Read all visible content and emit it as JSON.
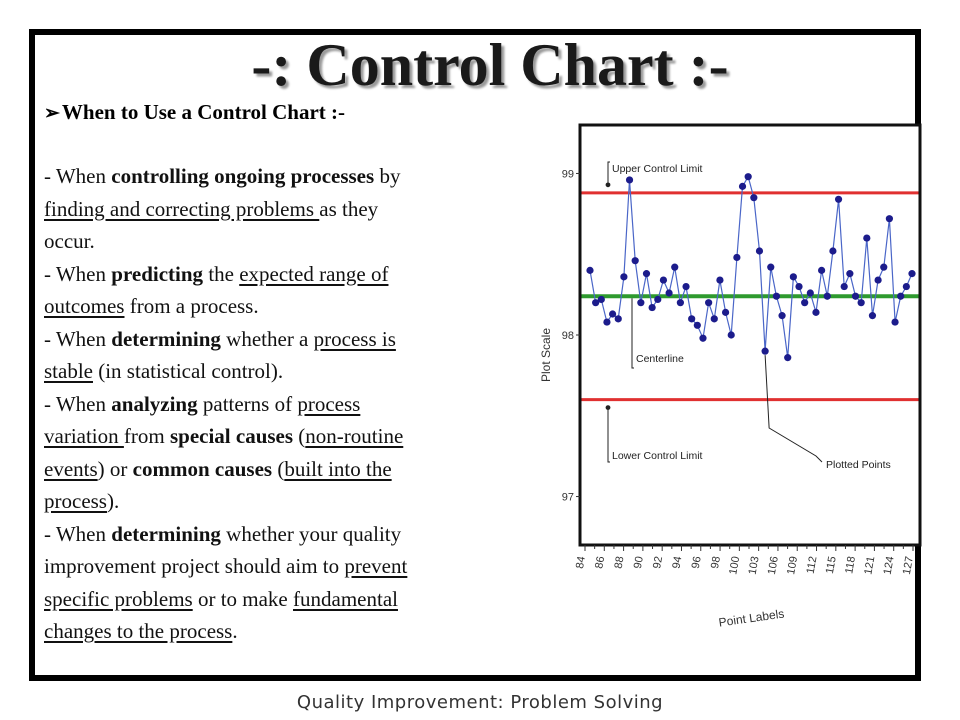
{
  "title": "-: Control Chart :-",
  "heading": "When to Use a Control Chart :-",
  "heading_icon": "arrow-bullet-icon",
  "body_lines": [
    [
      {
        "t": "- When "
      },
      {
        "t": "controlling ongoing processes",
        "b": true
      },
      {
        "t": " by"
      }
    ],
    [
      {
        "t": "finding and correcting problems ",
        "u": true
      },
      {
        "t": "as they"
      }
    ],
    [
      {
        "t": "occur."
      }
    ],
    [
      {
        "t": "- When "
      },
      {
        "t": "predicting",
        "b": true
      },
      {
        "t": " the "
      },
      {
        "t": "expected range of",
        "u": true
      }
    ],
    [
      {
        "t": "outcomes",
        "u": true
      },
      {
        "t": " from a process."
      }
    ],
    [
      {
        "t": "- When "
      },
      {
        "t": "determining",
        "b": true
      },
      {
        "t": " whether a "
      },
      {
        "t": "process is",
        "u": true
      }
    ],
    [
      {
        "t": "stable",
        "u": true
      },
      {
        "t": " (in statistical control)."
      }
    ],
    [
      {
        "t": "- When "
      },
      {
        "t": "analyzing",
        "b": true
      },
      {
        "t": " patterns of "
      },
      {
        "t": "process",
        "u": true
      }
    ],
    [
      {
        "t": "variation ",
        "u": true
      },
      {
        "t": "from "
      },
      {
        "t": "special causes",
        "b": true
      },
      {
        "t": " ("
      },
      {
        "t": "non-routine",
        "u": true
      }
    ],
    [
      {
        "t": "events",
        "u": true
      },
      {
        "t": ") or "
      },
      {
        "t": "common causes",
        "b": true
      },
      {
        "t": " ("
      },
      {
        "t": "built into the",
        "u": true
      }
    ],
    [
      {
        "t": "process",
        "u": true
      },
      {
        "t": ")."
      }
    ],
    [
      {
        "t": "- When "
      },
      {
        "t": "determining",
        "b": true
      },
      {
        "t": " whether your quality"
      }
    ],
    [
      {
        "t": "improvement project should aim to "
      },
      {
        "t": "prevent",
        "u": true
      }
    ],
    [
      {
        "t": "specific problems",
        "u": true
      },
      {
        "t": " or to make "
      },
      {
        "t": "fundamental",
        "u": true
      }
    ],
    [
      {
        "t": "changes to the process",
        "u": true
      },
      {
        "t": "."
      }
    ]
  ],
  "chart": {
    "ylabel": "Plot Scale",
    "xlabel": "Point Labels",
    "annotations": {
      "ucl": "Upper Control Limit",
      "cl": "Centerline",
      "lcl": "Lower Control Limit",
      "points": "Plotted Points"
    },
    "y_tick_labels": [
      "99",
      "98",
      "97"
    ],
    "x_tick_labels": [
      "84",
      "86",
      "88",
      "90",
      "92",
      "94",
      "96",
      "98",
      "100",
      "103",
      "106",
      "109",
      "112",
      "115",
      "118",
      "121",
      "124",
      "127"
    ],
    "colors": {
      "ucl": "#e03030",
      "cl": "#2e9a2e",
      "lcl": "#e03030",
      "line": "#4a66c8",
      "points": "#1c1c8c"
    }
  },
  "chart_data": {
    "type": "line",
    "title": "",
    "xlabel": "Point Labels",
    "ylabel": "Plot Scale",
    "x_start": 84,
    "x_end": 128,
    "ylim": [
      96.7,
      99.3
    ],
    "control_limits": {
      "upper": 98.88,
      "center": 98.24,
      "lower": 97.6
    },
    "series": [
      {
        "values": [
          98.4,
          98.2,
          98.22,
          98.08,
          98.13,
          98.1,
          98.36,
          98.96,
          98.46,
          98.2,
          98.38,
          98.17,
          98.22,
          98.34,
          98.26,
          98.42,
          98.2,
          98.3,
          98.1,
          98.06,
          97.98,
          98.2,
          98.1,
          98.34,
          98.14,
          98.0,
          98.48,
          98.92,
          98.98,
          98.85,
          98.52,
          97.9,
          98.42,
          98.24,
          98.12,
          97.86,
          98.36,
          98.3,
          98.2,
          98.26,
          98.14,
          98.4,
          98.24,
          98.52,
          98.84,
          98.3,
          98.38,
          98.24,
          98.2,
          98.6,
          98.12,
          98.34,
          98.42,
          98.72,
          98.08,
          98.24,
          98.3,
          98.38
        ]
      }
    ]
  }
}
